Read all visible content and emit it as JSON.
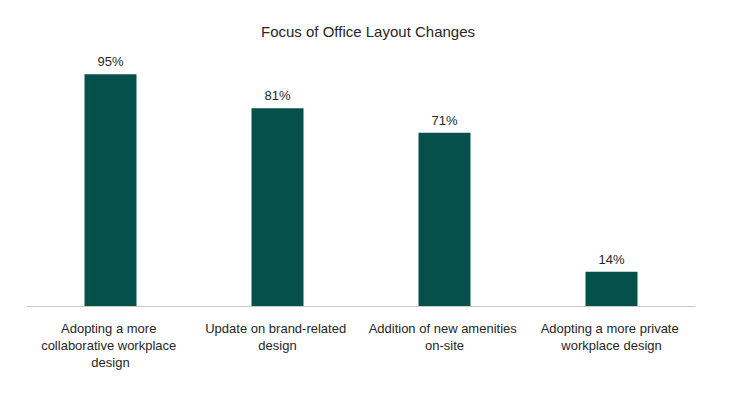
{
  "chart_data": {
    "type": "bar",
    "title": "Focus of Office Layout Changes",
    "categories": [
      "Adopting a more collaborative workplace design",
      "Update on brand-related design",
      "Addition of new amenities on-site",
      "Adopting a more private workplace design"
    ],
    "values": [
      95,
      81,
      71,
      14
    ],
    "value_labels": [
      "95%",
      "81%",
      "71%",
      "14%"
    ],
    "color": "#06504b",
    "ylim": [
      0,
      100
    ],
    "grid": false,
    "data_labels": true,
    "tick_labels": "x"
  }
}
